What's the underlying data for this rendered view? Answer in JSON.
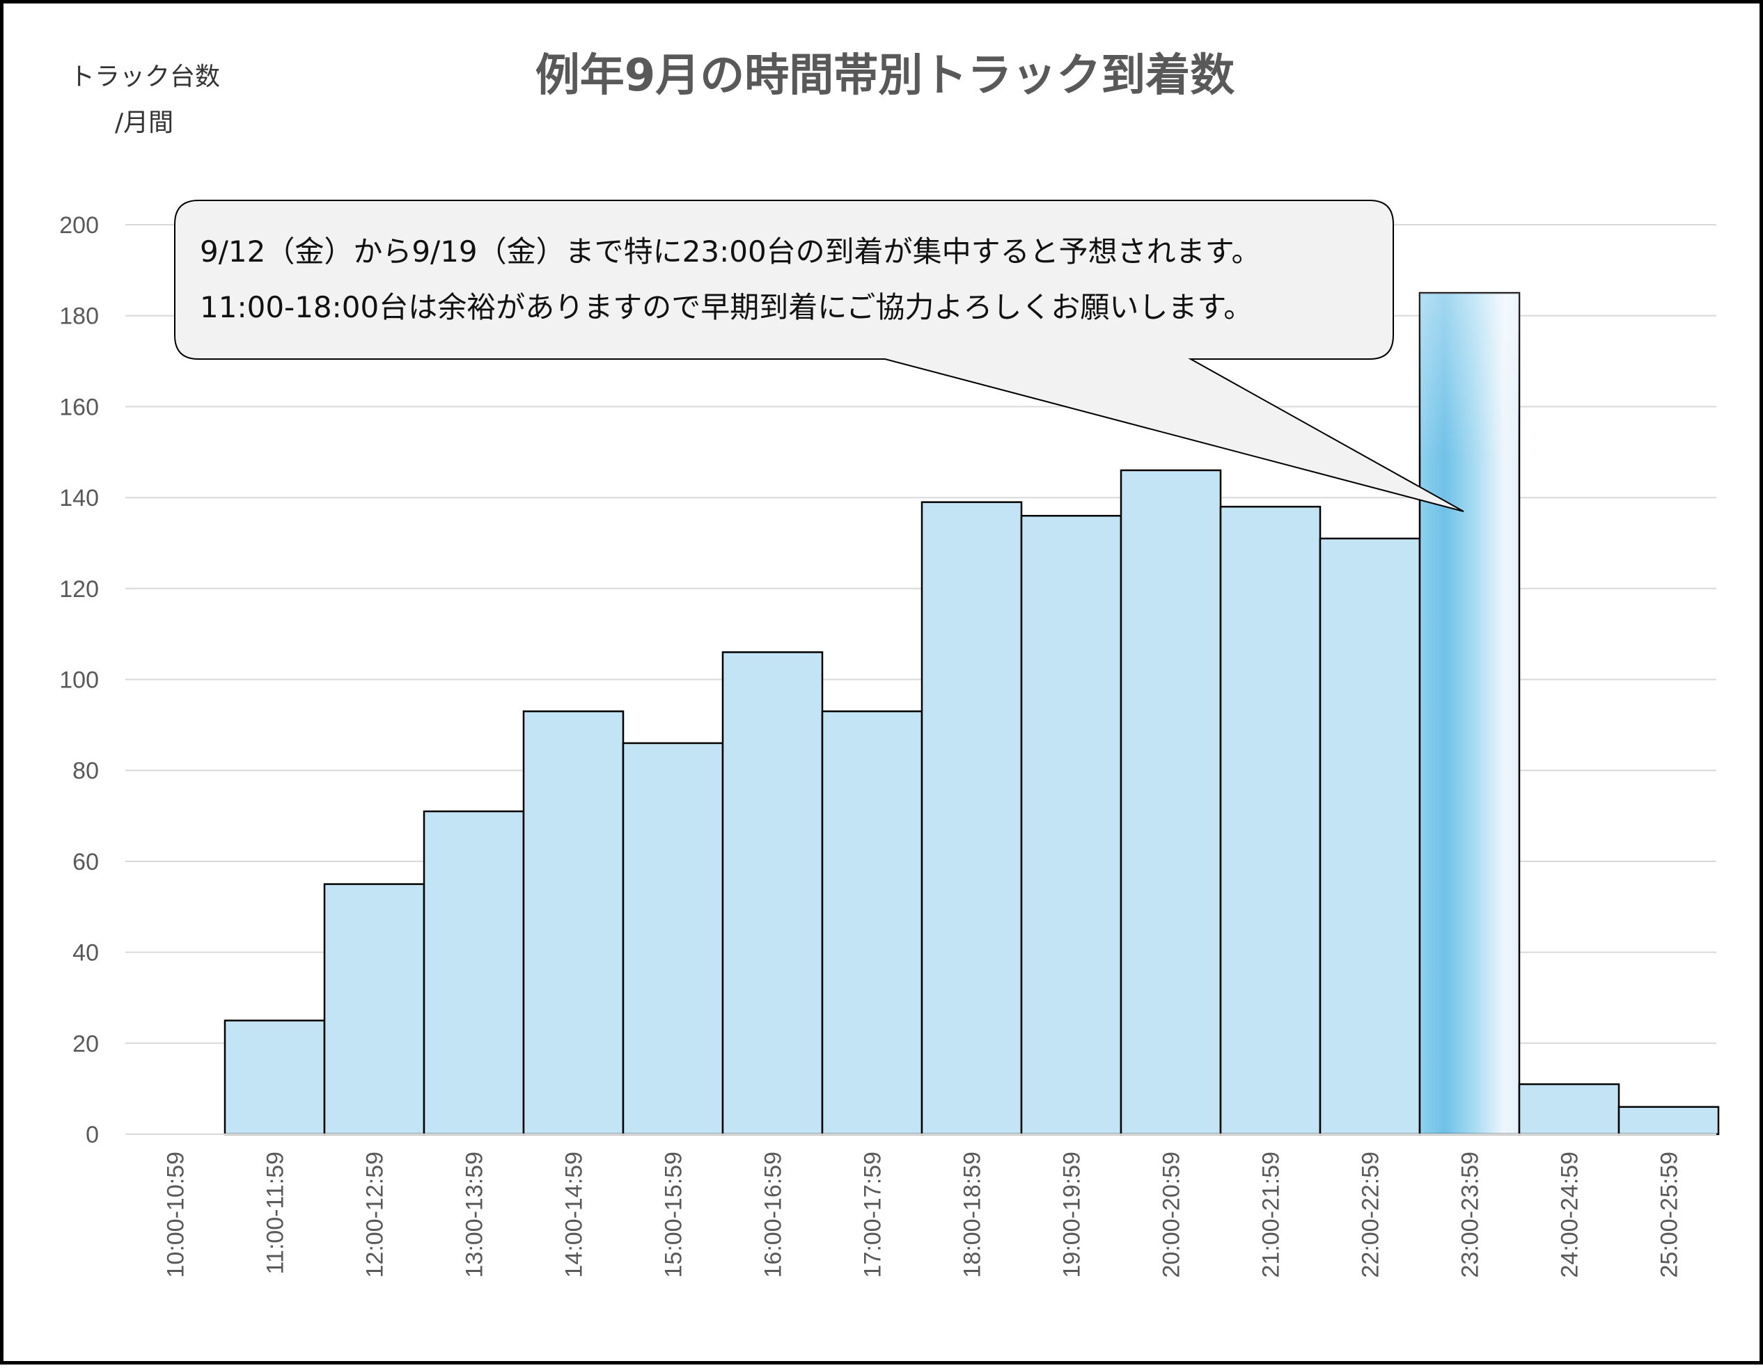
{
  "chart_data": {
    "type": "bar",
    "title": "例年9月の時間帯別トラック到着数",
    "ylabel_line1": "トラック台数",
    "ylabel_line2": "/月間",
    "xlabel": "",
    "ylim": [
      0,
      200
    ],
    "yticks": [
      0,
      20,
      40,
      60,
      80,
      100,
      120,
      140,
      160,
      180,
      200
    ],
    "grid": true,
    "categories": [
      "10:00-10:59",
      "11:00-11:59",
      "12:00-12:59",
      "13:00-13:59",
      "14:00-14:59",
      "15:00-15:59",
      "16:00-16:59",
      "17:00-17:59",
      "18:00-18:59",
      "19:00-19:59",
      "20:00-20:59",
      "21:00-21:59",
      "22:00-22:59",
      "23:00-23:59",
      "24:00-24:59",
      "25:00-25:59"
    ],
    "values": [
      0,
      25,
      55,
      71,
      93,
      86,
      106,
      93,
      139,
      136,
      146,
      138,
      131,
      185,
      11,
      6
    ],
    "highlight_category": "23:00-23:59",
    "annotation": {
      "line1": "9/12（金）から9/19（金）まで特に23:00台の到着が集中すると予想されます。",
      "line2": "11:00-18:00台は余裕がありますので早期到着にご協力よろしくお願いします。"
    }
  },
  "colors": {
    "bar_fill": "#c3e4f4",
    "bar_stroke": "#000000",
    "highlight_dark": "#6fc1e8",
    "highlight_light": "#eef6fc",
    "grid": "#d9d9d9",
    "callout_fill": "#f2f2f2"
  }
}
